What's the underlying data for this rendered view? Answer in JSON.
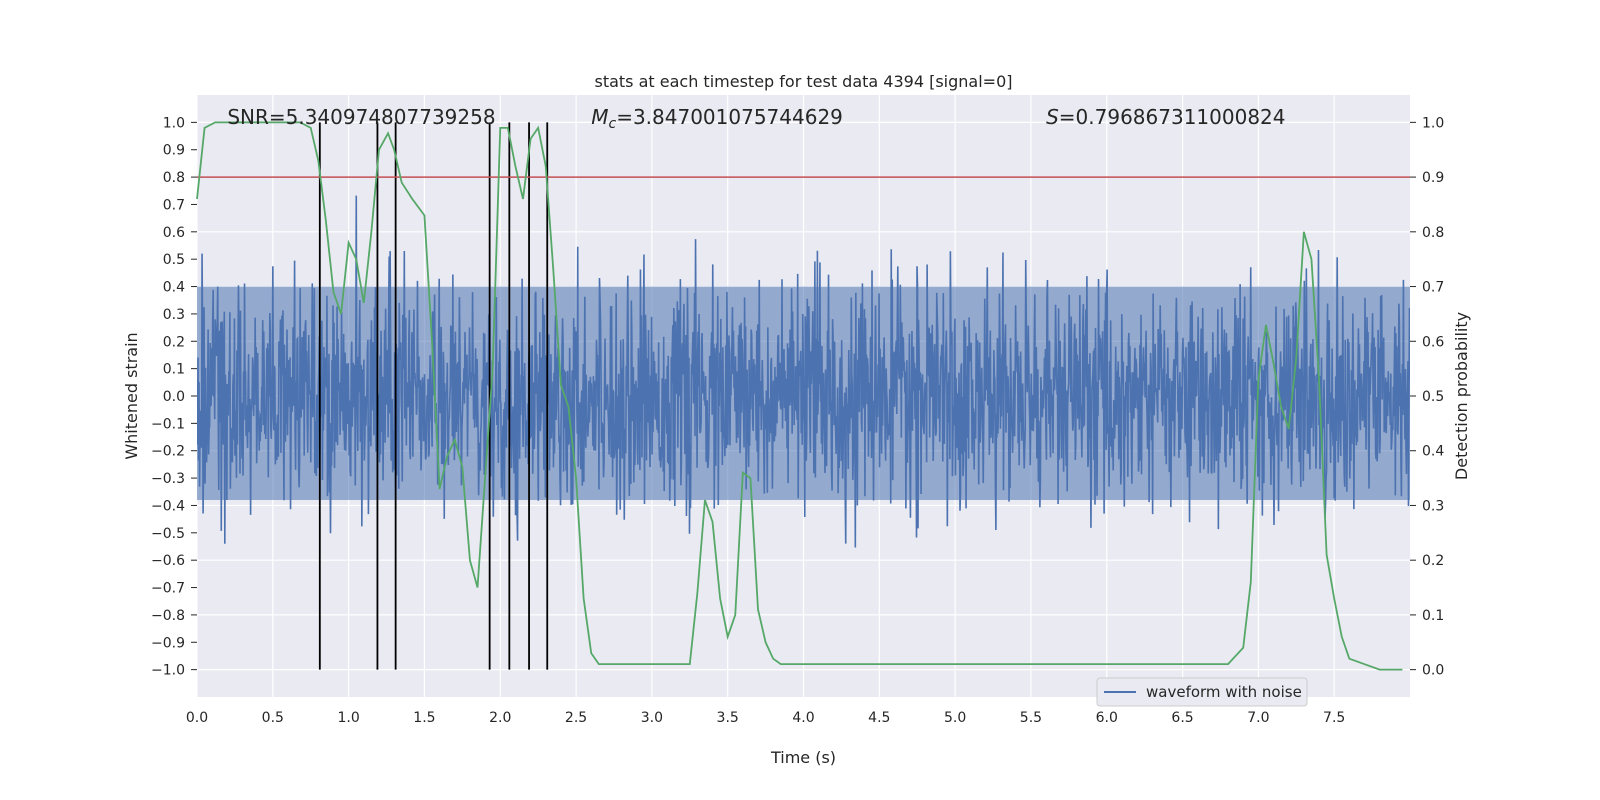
{
  "chart_data": {
    "type": "line",
    "title": "stats at each timestep for test data 4394 [signal=0]",
    "xlabel": "Time (s)",
    "ylabel_left": "Whitened strain",
    "ylabel_right": "Detection probability",
    "xlim": [
      0.0,
      8.0
    ],
    "ylim_left": [
      -1.1,
      1.1
    ],
    "ylim_right": [
      -0.05,
      1.05
    ],
    "x_ticks": [
      "0.0",
      "0.5",
      "1.0",
      "1.5",
      "2.0",
      "2.5",
      "3.0",
      "3.5",
      "4.0",
      "4.5",
      "5.0",
      "5.5",
      "6.0",
      "6.5",
      "7.0",
      "7.5"
    ],
    "x_tick_values": [
      0.0,
      0.5,
      1.0,
      1.5,
      2.0,
      2.5,
      3.0,
      3.5,
      4.0,
      4.5,
      5.0,
      5.5,
      6.0,
      6.5,
      7.0,
      7.5
    ],
    "y_ticks_left": [
      "1.0",
      "0.9",
      "0.8",
      "0.7",
      "0.6",
      "0.5",
      "0.4",
      "0.3",
      "0.2",
      "0.1",
      "0.0",
      "−0.1",
      "−0.2",
      "−0.3",
      "−0.4",
      "−0.5",
      "−0.6",
      "−0.7",
      "−0.8",
      "−0.9",
      "−1.0"
    ],
    "y_tick_values_left": [
      1.0,
      0.9,
      0.8,
      0.7,
      0.6,
      0.5,
      0.4,
      0.3,
      0.2,
      0.1,
      0.0,
      -0.1,
      -0.2,
      -0.3,
      -0.4,
      -0.5,
      -0.6,
      -0.7,
      -0.8,
      -0.9,
      -1.0
    ],
    "y_ticks_right": [
      "1.0",
      "0.9",
      "0.8",
      "0.7",
      "0.6",
      "0.5",
      "0.4",
      "0.3",
      "0.2",
      "0.1",
      "0.0"
    ],
    "y_tick_values_right": [
      1.0,
      0.9,
      0.8,
      0.7,
      0.6,
      0.5,
      0.4,
      0.3,
      0.2,
      0.1,
      0.0
    ],
    "annotations": {
      "snr": "SNR=5.340974807739258",
      "mc_symbol": "M",
      "mc_sub": "c",
      "mc_value": "=3.847001075744629",
      "s_symbol": "S",
      "s_value": "=0.796867311000824"
    },
    "threshold": 0.9,
    "vertical_lines_x": [
      0.81,
      1.19,
      1.31,
      1.93,
      2.06,
      2.19,
      2.31
    ],
    "series": [
      {
        "name": "waveform with noise",
        "axis": "left",
        "color": "#4c72b0",
        "description_amplitude_envelope": [
          [
            0.0,
            0.7
          ],
          [
            1.5,
            0.8
          ],
          [
            2.0,
            0.75
          ],
          [
            4.0,
            0.75
          ],
          [
            6.0,
            0.75
          ],
          [
            8.0,
            0.75
          ]
        ]
      },
      {
        "name": "detection probability",
        "axis": "right",
        "color": "#55a868",
        "x": [
          0.0,
          0.05,
          0.12,
          0.2,
          0.3,
          0.4,
          0.5,
          0.6,
          0.68,
          0.75,
          0.8,
          0.85,
          0.9,
          0.95,
          1.0,
          1.05,
          1.1,
          1.15,
          1.2,
          1.26,
          1.3,
          1.35,
          1.42,
          1.5,
          1.55,
          1.6,
          1.65,
          1.7,
          1.75,
          1.8,
          1.85,
          1.9,
          1.95,
          2.0,
          2.05,
          2.1,
          2.15,
          2.2,
          2.25,
          2.3,
          2.35,
          2.4,
          2.45,
          2.5,
          2.55,
          2.6,
          2.65,
          2.7,
          2.8,
          2.9,
          3.0,
          3.1,
          3.2,
          3.25,
          3.3,
          3.35,
          3.4,
          3.45,
          3.5,
          3.55,
          3.6,
          3.65,
          3.7,
          3.75,
          3.8,
          3.85,
          3.9,
          4.0,
          4.2,
          4.5,
          5.0,
          5.5,
          6.0,
          6.5,
          6.7,
          6.8,
          6.9,
          6.95,
          7.0,
          7.05,
          7.1,
          7.15,
          7.2,
          7.25,
          7.3,
          7.35,
          7.4,
          7.45,
          7.5,
          7.55,
          7.6,
          7.7,
          7.8,
          7.95
        ],
        "y": [
          0.86,
          0.99,
          1.0,
          1.0,
          1.0,
          1.0,
          1.0,
          1.0,
          1.0,
          0.99,
          0.93,
          0.82,
          0.69,
          0.65,
          0.78,
          0.75,
          0.67,
          0.8,
          0.95,
          0.98,
          0.95,
          0.89,
          0.86,
          0.83,
          0.6,
          0.33,
          0.39,
          0.42,
          0.37,
          0.2,
          0.15,
          0.35,
          0.55,
          0.99,
          0.99,
          0.92,
          0.86,
          0.97,
          0.99,
          0.92,
          0.73,
          0.52,
          0.48,
          0.35,
          0.13,
          0.03,
          0.01,
          0.01,
          0.01,
          0.01,
          0.01,
          0.01,
          0.01,
          0.01,
          0.14,
          0.31,
          0.27,
          0.13,
          0.06,
          0.1,
          0.36,
          0.35,
          0.11,
          0.05,
          0.02,
          0.01,
          0.01,
          0.01,
          0.01,
          0.01,
          0.01,
          0.01,
          0.01,
          0.01,
          0.01,
          0.01,
          0.04,
          0.16,
          0.53,
          0.63,
          0.56,
          0.48,
          0.44,
          0.57,
          0.8,
          0.75,
          0.53,
          0.21,
          0.13,
          0.06,
          0.02,
          0.01,
          0.0,
          0.0
        ]
      },
      {
        "name": "threshold",
        "axis": "right",
        "color": "#c44e52",
        "y": 0.9
      }
    ],
    "legend": {
      "position": "lower-right-center",
      "entries": [
        "waveform with noise"
      ]
    }
  }
}
